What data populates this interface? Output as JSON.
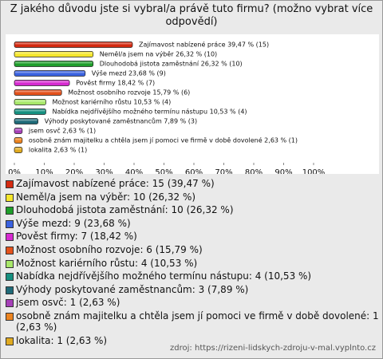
{
  "chart_data": {
    "type": "barh",
    "title": "Z jakého důvodu jste si vybral/a právě tuto firmu? (možno vybrat více odpovědí)",
    "source": "zdroj: https://rizeni-lidskych-zdroju-v-mal.vyplnto.cz",
    "xlim": [
      0,
      100
    ],
    "xticks": [
      {
        "value": 0,
        "label": "0%"
      },
      {
        "value": 10,
        "label": "10%"
      },
      {
        "value": 20,
        "label": "20%"
      },
      {
        "value": 30,
        "label": "30%"
      },
      {
        "value": 40,
        "label": "40%"
      },
      {
        "value": 50,
        "label": "50%"
      },
      {
        "value": 60,
        "label": "60%"
      },
      {
        "value": 70,
        "label": "70%"
      },
      {
        "value": 80,
        "label": "80%"
      },
      {
        "value": 90,
        "label": "90%"
      },
      {
        "value": 100,
        "label": "100%"
      }
    ],
    "grid": false,
    "series": [
      {
        "name": "Zajímavost nabízené práce: 15 (39,47 %)",
        "color": "#d42a10",
        "values": [
          39.47
        ],
        "value_labels": [
          "Zajímavost nabízené práce 39,47 % (15)"
        ]
      },
      {
        "name": "Neměl/a jsem na výběr: 10 (26,32 %)",
        "color": "#f5e62a",
        "values": [
          26.32
        ],
        "value_labels": [
          "Neměl/a jsem na výběr 26,32 % (10)"
        ]
      },
      {
        "name": "Dlouhodobá jistota zaměstnání: 10 (26,32 %)",
        "color": "#1e9e2a",
        "values": [
          26.32
        ],
        "value_labels": [
          "Dlouhodobá jistota zaměstnání 26,32 % (10)"
        ]
      },
      {
        "name": "Výše mezd: 9 (23,68 %)",
        "color": "#3a62e0",
        "values": [
          23.68
        ],
        "value_labels": [
          "Výše mezd 23,68 % (9)"
        ]
      },
      {
        "name": "Pověst firmy: 7 (18,42 %)",
        "color": "#d62ad0",
        "values": [
          18.42
        ],
        "value_labels": [
          "Pověst firmy 18,42 % (7)"
        ]
      },
      {
        "name": "Možnost osobního rozvoje: 6 (15,79 %)",
        "color": "#e4521c",
        "values": [
          15.79
        ],
        "value_labels": [
          "Možnost osobního rozvoje 15,79 % (6)"
        ]
      },
      {
        "name": "Možnost kariérního růstu: 4 (10,53 %)",
        "color": "#a8e86a",
        "values": [
          10.53
        ],
        "value_labels": [
          "Možnost kariérního růstu 10,53 % (4)"
        ]
      },
      {
        "name": "Nabídka nejdřívějšího možného termínu nástupu: 4 (10,53 %)",
        "color": "#169080",
        "values": [
          10.53
        ],
        "value_labels": [
          "Nabídka nejdřívějšího možného termínu nástupu 10,53 % (4)"
        ]
      },
      {
        "name": "Výhody poskytované zaměstnancům: 3 (7,89 %)",
        "color": "#1f6a78",
        "values": [
          7.89
        ],
        "value_labels": [
          "Výhody poskytované zaměstnancům 7,89 % (3)"
        ]
      },
      {
        "name": "jsem osvč: 1 (2,63 %)",
        "color": "#a640b8",
        "values": [
          2.63
        ],
        "value_labels": [
          "jsem osvč 2,63 % (1)"
        ]
      },
      {
        "name": "osobně znám majitelku a chtěla jsem jí pomoci ve firmě v době dovolené: 1 (2,63 %)",
        "color": "#ec8420",
        "values": [
          2.63
        ],
        "value_labels": [
          "osobně znám majitelku a chtěla jsem jí pomoci ve firmě v době dovolené 2,63 % (1)"
        ]
      },
      {
        "name": "lokalita: 1 (2,63 %)",
        "color": "#e0aa20",
        "values": [
          2.63
        ],
        "value_labels": [
          "lokalita 2,63 % (1)"
        ]
      }
    ]
  }
}
